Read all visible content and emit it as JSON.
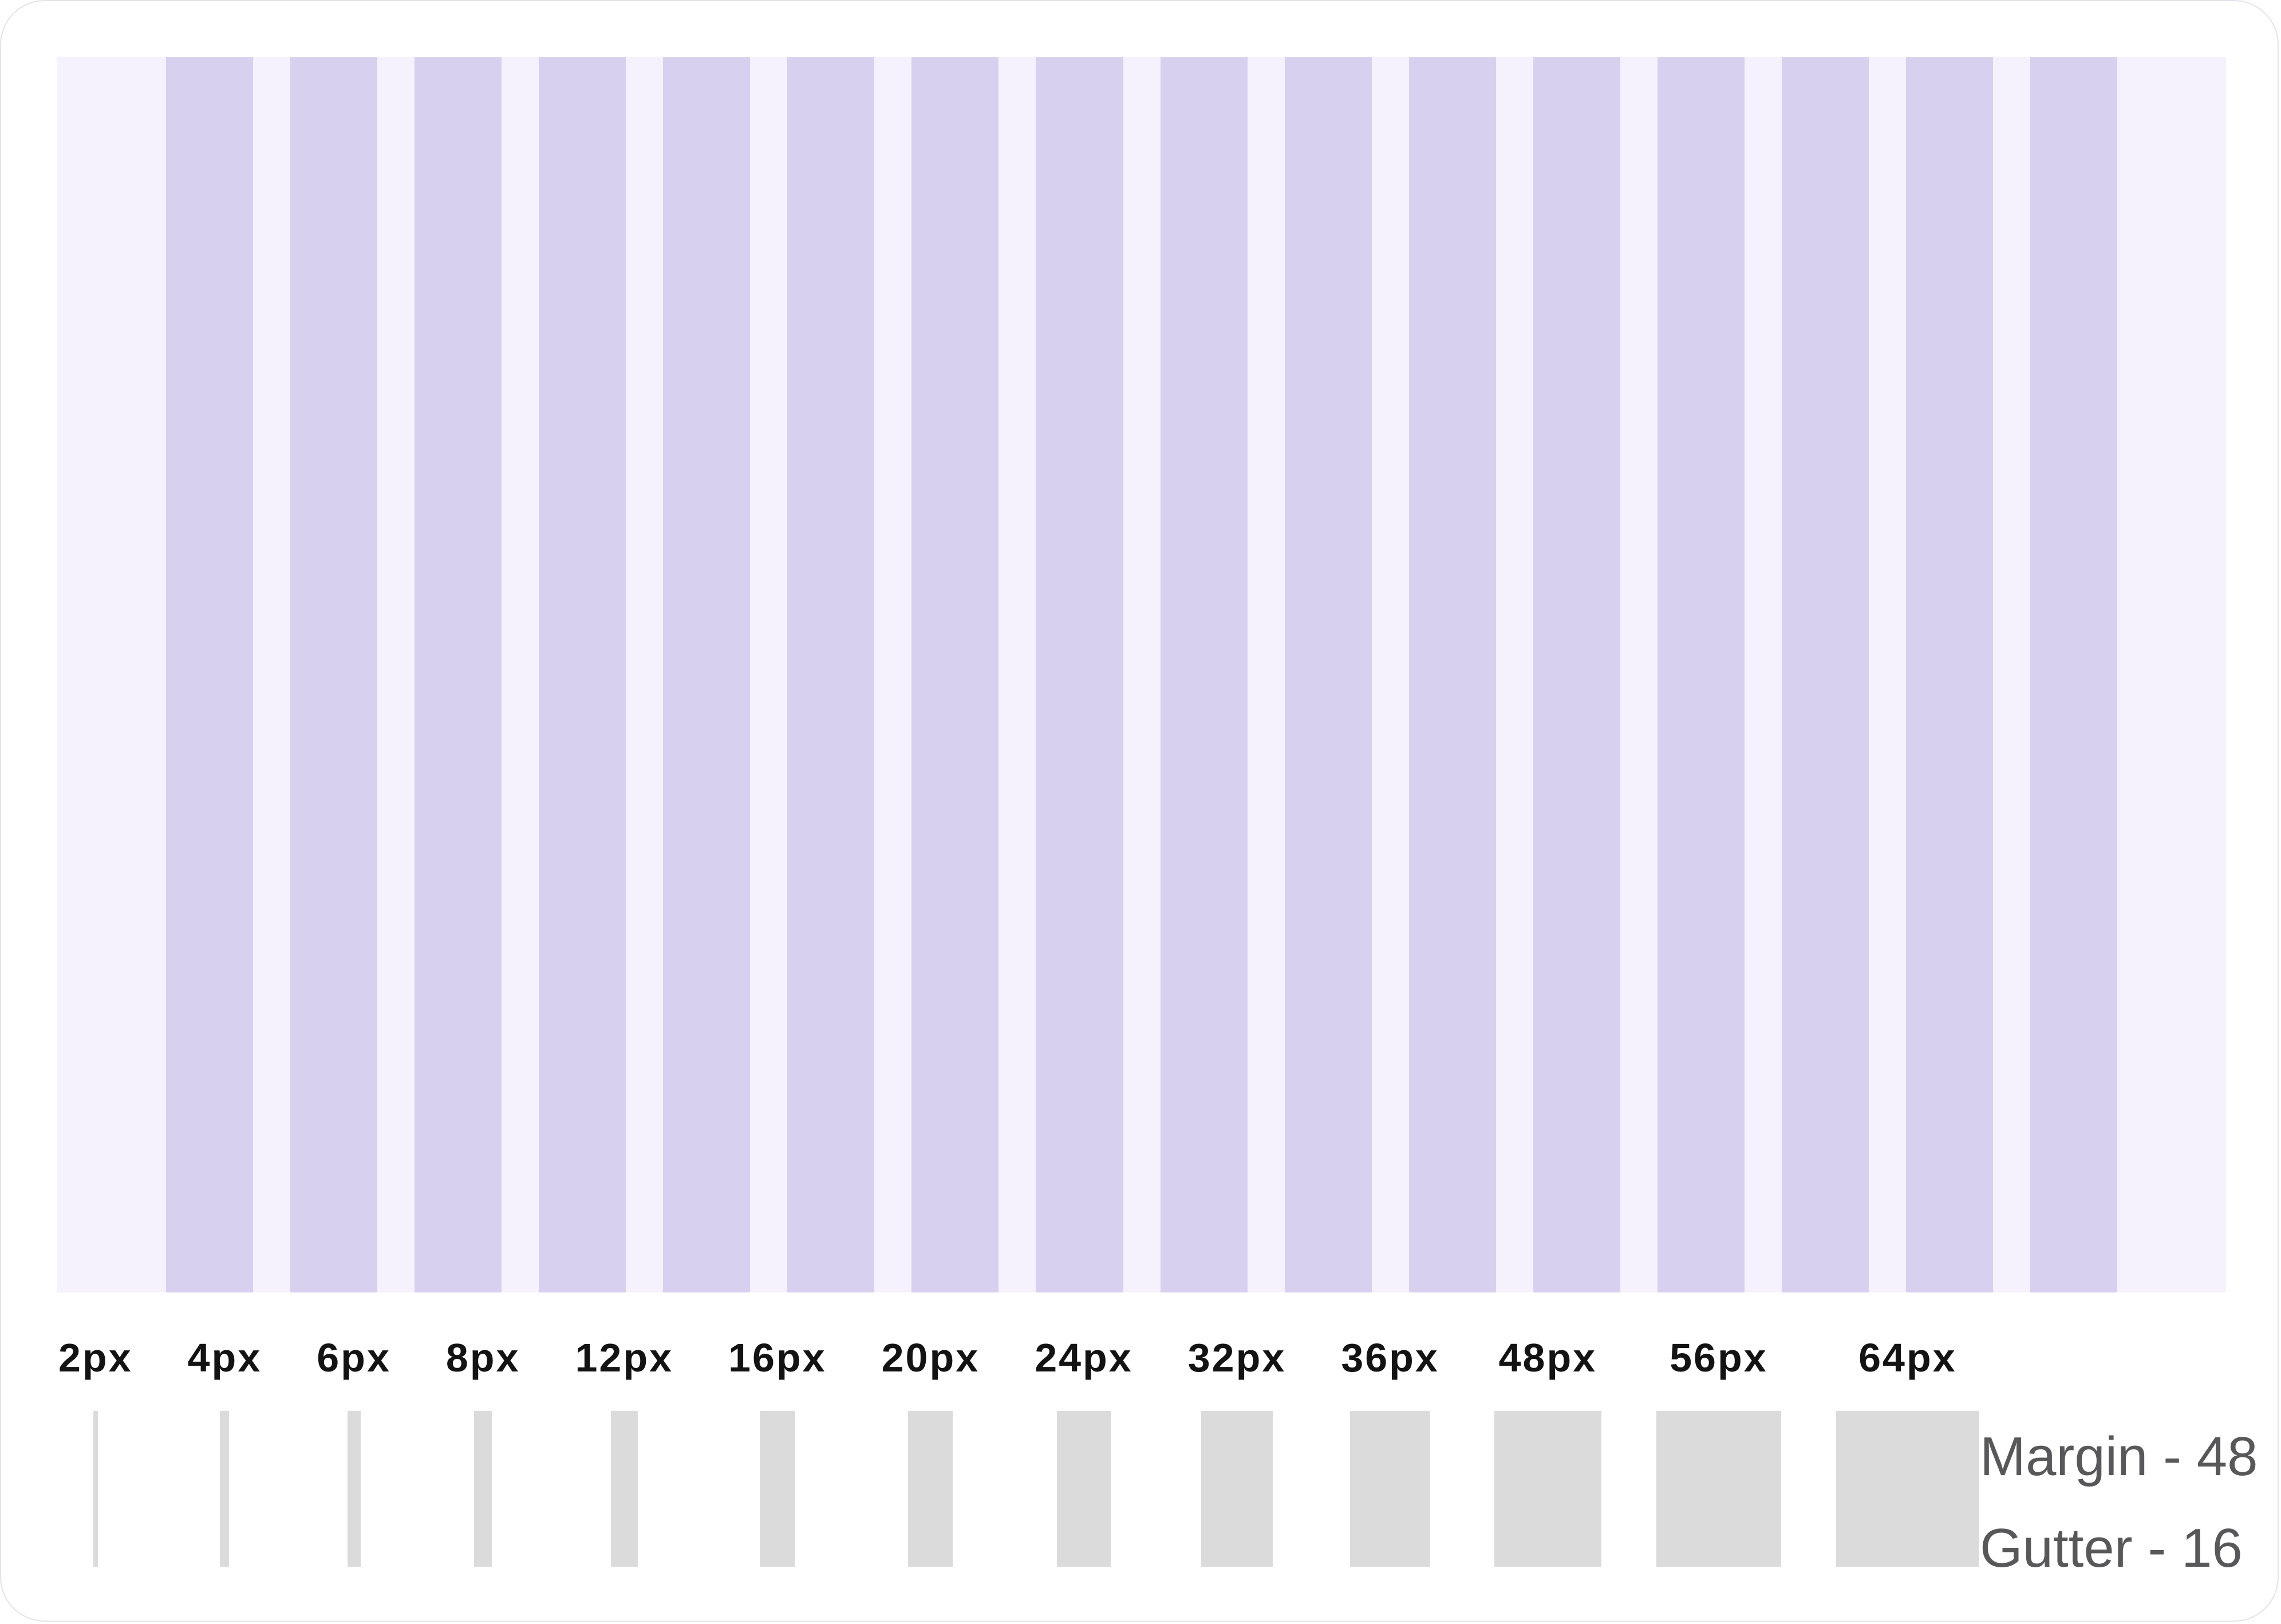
{
  "grid": {
    "column_count": 16,
    "background": "#f5f1fd",
    "column_color": "#d7d0ef"
  },
  "spacing": {
    "bar_color": "#dbdbdb",
    "label_color": "#131313",
    "items": [
      {
        "label": "2px",
        "value": 2
      },
      {
        "label": "4px",
        "value": 4
      },
      {
        "label": "6px",
        "value": 6
      },
      {
        "label": "8px",
        "value": 8
      },
      {
        "label": "12px",
        "value": 12
      },
      {
        "label": "16px",
        "value": 16
      },
      {
        "label": "20px",
        "value": 20
      },
      {
        "label": "24px",
        "value": 24
      },
      {
        "label": "32px",
        "value": 32
      },
      {
        "label": "36px",
        "value": 36
      },
      {
        "label": "48px",
        "value": 48
      },
      {
        "label": "56px",
        "value": 56
      },
      {
        "label": "64px",
        "value": 64
      }
    ]
  },
  "legend": {
    "margin_label": "Margin - 48",
    "gutter_label": "Gutter - 16",
    "text_color": "#58585a"
  }
}
